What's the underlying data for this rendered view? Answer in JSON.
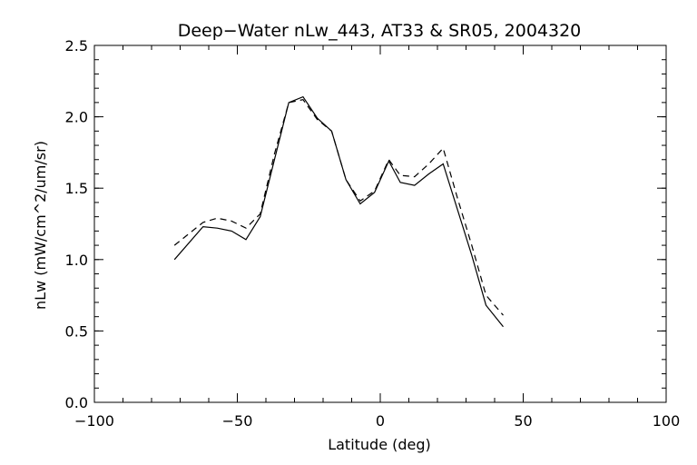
{
  "chart_data": {
    "type": "line",
    "title": "Deep−Water nLw_443, AT33 & SR05, 2004320",
    "xlabel": "Latitude (deg)",
    "ylabel": "nLw (mW/cm^2/um/sr)",
    "xlim": [
      -100,
      100
    ],
    "ylim": [
      0.0,
      2.5
    ],
    "xticks": [
      -100,
      -50,
      0,
      50,
      100
    ],
    "xtick_labels": [
      "−100",
      "−50",
      "0",
      "50",
      "100"
    ],
    "yticks": [
      0.0,
      0.5,
      1.0,
      1.5,
      2.0,
      2.5
    ],
    "ytick_labels": [
      "0.0",
      "0.5",
      "1.0",
      "1.5",
      "2.0",
      "2.5"
    ],
    "x_minor_step": 10,
    "y_minor_step": 0.1,
    "grid": false,
    "legend": "none",
    "series": [
      {
        "style": "solid",
        "color": "#000000",
        "x": [
          -72,
          -62,
          -57,
          -52,
          -47,
          -42,
          -37,
          -32,
          -27,
          -22,
          -17,
          -12,
          -7,
          -2,
          3,
          7,
          12,
          17,
          22,
          27,
          32,
          37,
          43
        ],
        "y": [
          1.0,
          1.23,
          1.22,
          1.2,
          1.14,
          1.3,
          1.7,
          2.1,
          2.14,
          1.99,
          1.9,
          1.56,
          1.39,
          1.47,
          1.69,
          1.54,
          1.52,
          1.6,
          1.67,
          1.35,
          1.03,
          0.68,
          0.53
        ]
      },
      {
        "style": "dashed",
        "color": "#000000",
        "x": [
          -72,
          -62,
          -57,
          -52,
          -47,
          -42,
          -37,
          -32,
          -27,
          -22,
          -17,
          -12,
          -7,
          -2,
          3,
          7,
          12,
          17,
          22,
          27,
          32,
          37,
          43
        ],
        "y": [
          1.1,
          1.26,
          1.29,
          1.27,
          1.22,
          1.32,
          1.74,
          2.1,
          2.12,
          1.98,
          1.9,
          1.56,
          1.41,
          1.48,
          1.7,
          1.59,
          1.58,
          1.67,
          1.78,
          1.43,
          1.1,
          0.75,
          0.61
        ]
      }
    ]
  }
}
